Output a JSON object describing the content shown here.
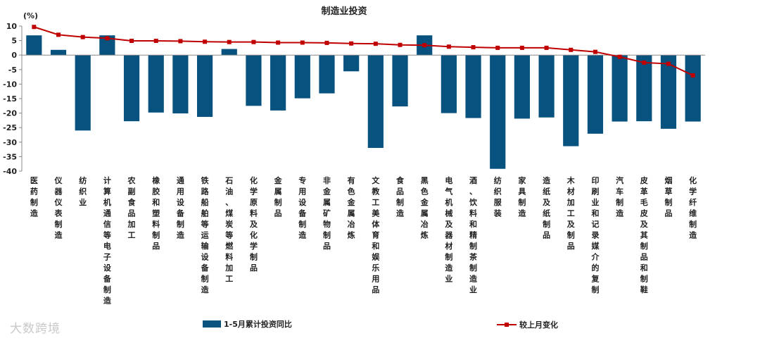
{
  "chart_data": {
    "type": "bar",
    "title": "制造业投资",
    "unit": "(%)",
    "ylim": [
      -40,
      10
    ],
    "yticks": [
      10,
      5,
      0,
      -5,
      -10,
      -15,
      -20,
      -25,
      -30,
      -35,
      -40
    ],
    "grid": false,
    "legend_position": "bottom",
    "categories": [
      "医药制造",
      "仪器仪表制造",
      "纺织业",
      "计算机通信等电子设备制造",
      "农副食品加工",
      "橡胶和塑料制品",
      "通用设备制造",
      "铁路船舶等运输设备制造",
      "石油、煤炭等燃料加工",
      "化学原料及化学制品",
      "金属制品",
      "专用设备制造",
      "非金属矿物制品",
      "有色金属冶炼",
      "文教工美体育和娱乐用品",
      "食品制造",
      "黑色金属冶炼",
      "电气机械及器材制造业",
      "酒、饮料和精制茶制造业",
      "纺织服装",
      "家具制造",
      "造纸及纸制品",
      "木材加工及制品",
      "印刷业和记录媒介的复制",
      "汽车制造",
      "皮革毛皮及其制品和制鞋",
      "烟草制品",
      "化学纤维制造"
    ],
    "series": [
      {
        "name": "1-5月累计投资同比",
        "type": "bar",
        "color": "#08527f",
        "values": [
          6.8,
          1.8,
          -26,
          6.8,
          -22.8,
          -19.8,
          -20.1,
          -21.3,
          2.1,
          -17.5,
          -19.1,
          -14.9,
          -13.2,
          -5.6,
          -32,
          -17.7,
          6.8,
          -20,
          -21.7,
          -39.2,
          -21.9,
          -21.5,
          -31.4,
          -27.1,
          -22.9,
          -22.8,
          -25.4,
          -22.9
        ]
      },
      {
        "name": "较上月变化",
        "type": "line",
        "color": "#c00000",
        "values": [
          9.7,
          7,
          6.2,
          5.8,
          4.9,
          4.9,
          4.8,
          4.6,
          4.5,
          4.5,
          4.3,
          4.3,
          4.2,
          4.0,
          3.9,
          3.5,
          3.4,
          2.9,
          2.7,
          2.5,
          2.5,
          2.5,
          1.8,
          1.1,
          -0.6,
          -2.6,
          -3.0,
          -7.0
        ]
      }
    ]
  },
  "watermark": "大数跨境"
}
